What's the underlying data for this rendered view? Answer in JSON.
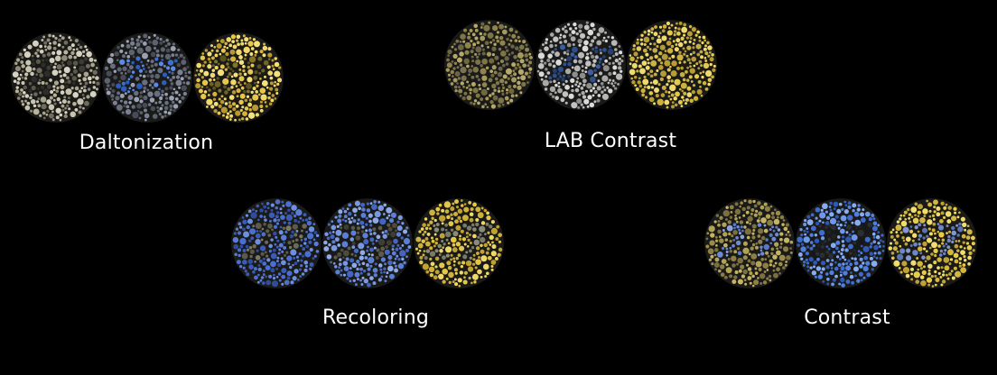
{
  "panels": [
    {
      "caption": "Daltonization",
      "plates": [
        {
          "number": "27",
          "dot_colors": [
            "#b9b39a",
            "#8f8b78",
            "#d6d2c2",
            "#6f6c5e",
            "#a8a48e",
            "#c8c4b0"
          ],
          "number_colors": [
            "#3d3b33",
            "#5a5848",
            "#2e2d27"
          ]
        },
        {
          "number": "27",
          "dot_colors": [
            "#5d6271",
            "#7a8092",
            "#474b58",
            "#9aa1b3",
            "#686e80"
          ],
          "number_colors": [
            "#3f6fd1",
            "#2d5cc0",
            "#5b8ae6"
          ]
        },
        {
          "number": "27",
          "dot_colors": [
            "#e8c64a",
            "#d4b23c",
            "#f2d867",
            "#b8982f",
            "#f7e07a"
          ],
          "number_colors": [
            "#6e6224",
            "#82742c",
            "#5b521f"
          ]
        }
      ]
    },
    {
      "caption": "LAB Contrast",
      "plates": [
        {
          "number": "27",
          "dot_colors": [
            "#8f8450",
            "#a6995c",
            "#6f673f",
            "#b5a86a",
            "#7e7547"
          ],
          "number_colors": [
            "#7a7150",
            "#6b6349"
          ]
        },
        {
          "number": "27",
          "dot_colors": [
            "#c2c2c2",
            "#a9a9a9",
            "#dadada",
            "#8e8e8e",
            "#b7b7b7"
          ],
          "number_colors": [
            "#2f4f8e",
            "#3c5ea3",
            "#243f73"
          ]
        },
        {
          "number": "27",
          "dot_colors": [
            "#e3c94f",
            "#cdb23e",
            "#f0da6c",
            "#b99d33"
          ],
          "number_colors": [
            "#c7ae44",
            "#b39b3a"
          ]
        }
      ]
    },
    {
      "caption": "Recoloring",
      "plates": [
        {
          "number": "27",
          "dot_colors": [
            "#4a6fd0",
            "#3a5cb8",
            "#6d8fe0",
            "#2f4d9e",
            "#5a7cd8"
          ],
          "number_colors": [
            "#6b6a55",
            "#5c5b4a",
            "#7a7860"
          ]
        },
        {
          "number": "27",
          "dot_colors": [
            "#5b7fd6",
            "#7a98e2",
            "#4466c0",
            "#8eaae8"
          ],
          "number_colors": [
            "#4e4c3e",
            "#3f3e34",
            "#5c5a48"
          ]
        },
        {
          "number": "27",
          "dot_colors": [
            "#e4c746",
            "#d0b23a",
            "#f0d866",
            "#c0a232"
          ],
          "number_colors": [
            "#8a8a78",
            "#7a7a6a"
          ]
        }
      ]
    },
    {
      "caption": "Contrast",
      "plates": [
        {
          "number": "27",
          "dot_colors": [
            "#9a8c4a",
            "#b2a256",
            "#7c7040",
            "#c4b466",
            "#8c7f45"
          ],
          "number_colors": [
            "#6d8ad8",
            "#5a78c8",
            "#8aa2e2"
          ]
        },
        {
          "number": "27",
          "dot_colors": [
            "#4f7fe0",
            "#3d6cd0",
            "#6e98ec",
            "#2f58b8",
            "#88acf0"
          ],
          "number_colors": [
            "#1f2328",
            "#2a2f35",
            "#14171b"
          ]
        },
        {
          "number": "27",
          "dot_colors": [
            "#e6cb4c",
            "#d2b63e",
            "#f2dc6c",
            "#bea236"
          ],
          "number_colors": [
            "#6f86c4",
            "#5c74b0",
            "#8296d0"
          ]
        }
      ]
    }
  ]
}
